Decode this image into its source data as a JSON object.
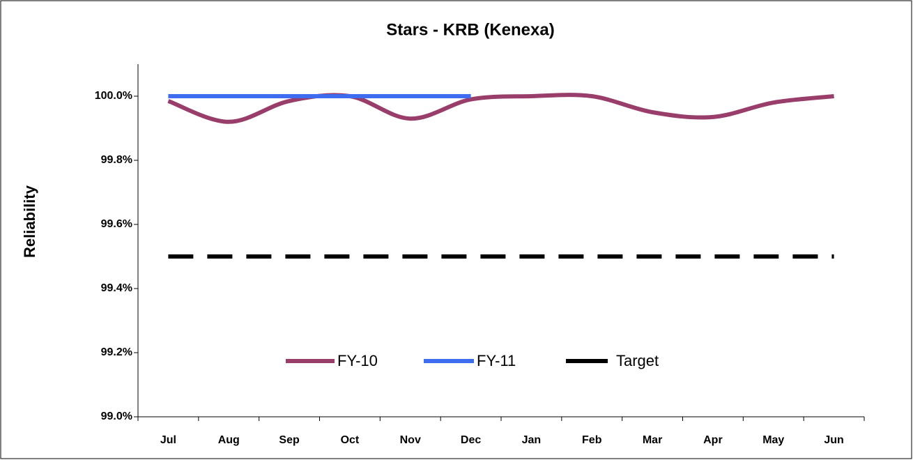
{
  "chart_data": {
    "type": "line",
    "title": "Stars - KRB (Kenexa)",
    "y_label": "Reliability",
    "categories": [
      "Jul",
      "Aug",
      "Sep",
      "Oct",
      "Nov",
      "Dec",
      "Jan",
      "Feb",
      "Mar",
      "Apr",
      "May",
      "Jun"
    ],
    "series": [
      {
        "name": "FY-10",
        "color": "#993d6b",
        "dash": false,
        "values": [
          99.985,
          99.92,
          99.985,
          100.0,
          99.93,
          99.99,
          100.0,
          100.0,
          99.95,
          99.935,
          99.98,
          100.0
        ]
      },
      {
        "name": "FY-11",
        "color": "#3d6cf0",
        "dash": false,
        "values": [
          100.0,
          100.0,
          100.0,
          100.0,
          100.0,
          100.0,
          null,
          null,
          null,
          null,
          null,
          null
        ]
      },
      {
        "name": "Target",
        "color": "#000000",
        "dash": true,
        "values": [
          99.5,
          99.5,
          99.5,
          99.5,
          99.5,
          99.5,
          99.5,
          99.5,
          99.5,
          99.5,
          99.5,
          99.5
        ]
      }
    ],
    "ylim": [
      99.0,
      100.1
    ],
    "yticks": [
      {
        "value": 99.0,
        "label": "99.0%"
      },
      {
        "value": 99.2,
        "label": "99.2%"
      },
      {
        "value": 99.4,
        "label": "99.4%"
      },
      {
        "value": 99.6,
        "label": "99.6%"
      },
      {
        "value": 99.8,
        "label": "99.8%"
      },
      {
        "value": 100.0,
        "label": "100.0%"
      }
    ],
    "grid": false,
    "legend": "bottom"
  }
}
